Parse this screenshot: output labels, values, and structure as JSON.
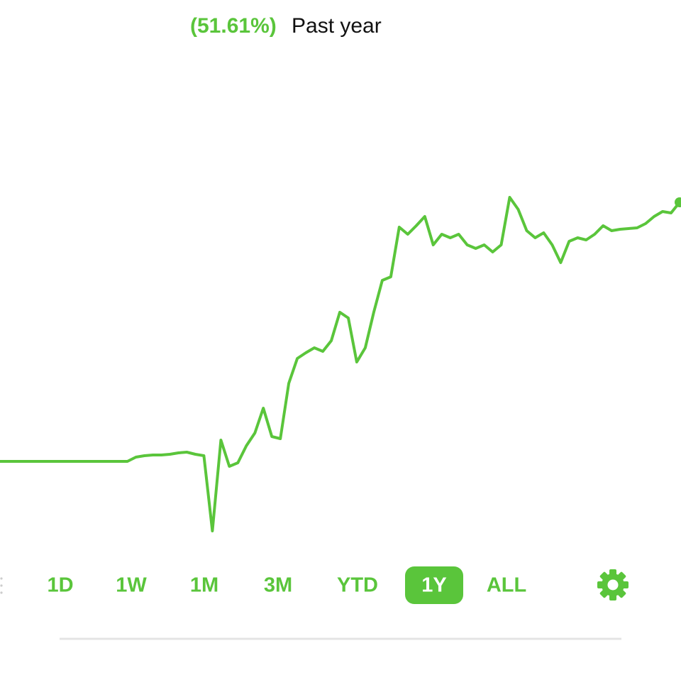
{
  "header": {
    "change": "(51.61%)",
    "period": "Past year"
  },
  "chart_data": {
    "type": "line",
    "color": "#5ac53b",
    "values": [
      0,
      0,
      0,
      0,
      0,
      0,
      0,
      0,
      0,
      0,
      0,
      0,
      0,
      0,
      0,
      0,
      0.85,
      1.13,
      1.27,
      1.27,
      1.41,
      1.7,
      1.84,
      1.41,
      1.13,
      -13.86,
      4.24,
      -0.99,
      -0.28,
      3.11,
      5.66,
      10.61,
      4.95,
      4.52,
      15.55,
      20.5,
      21.63,
      22.62,
      21.92,
      24.04,
      29.7,
      28.56,
      19.8,
      22.62,
      29.7,
      36.06,
      36.76,
      46.66,
      45.25,
      46.94,
      48.78,
      43.13,
      45.25,
      44.54,
      45.25,
      43.13,
      42.42,
      43.13,
      41.71,
      43.13,
      52.6,
      50.2,
      45.96,
      44.54,
      45.53,
      43.13,
      39.59,
      43.83,
      44.54,
      44.12,
      45.25,
      46.94,
      45.96,
      46.24,
      46.38,
      46.52,
      47.37,
      48.78,
      49.77,
      49.49,
      51.61
    ]
  },
  "range_buttons": {
    "options": [
      "1D",
      "1W",
      "1M",
      "3M",
      "YTD",
      "1Y",
      "ALL"
    ],
    "selected": 5
  }
}
